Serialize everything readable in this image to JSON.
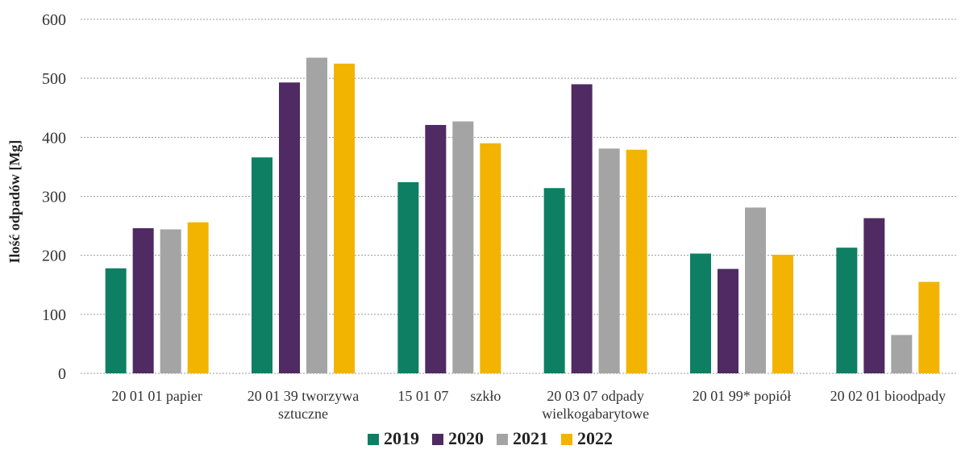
{
  "chart_data": {
    "type": "bar",
    "title": "",
    "xlabel": "",
    "ylabel": "Ilość odpadów [Mg]",
    "ylim": [
      0,
      600
    ],
    "yticks": [
      0,
      100,
      200,
      300,
      400,
      500,
      600
    ],
    "grid": true,
    "legend_position": "bottom",
    "categories": [
      [
        "20 01 01 papier"
      ],
      [
        "20 01 39 tworzywa",
        "sztuczne"
      ],
      [
        "15 01 07      szkło"
      ],
      [
        "20 03 07 odpady",
        "wielkogabarytowe"
      ],
      [
        "20 01 99* popiół"
      ],
      [
        "20 02 01 bioodpady"
      ]
    ],
    "series": [
      {
        "name": "2019",
        "color": "#0e7f62",
        "values": [
          178,
          366,
          324,
          314,
          203,
          213
        ]
      },
      {
        "name": "2020",
        "color": "#4f2a63",
        "values": [
          246,
          493,
          421,
          490,
          177,
          263
        ]
      },
      {
        "name": "2021",
        "color": "#a4a4a4",
        "values": [
          244,
          535,
          427,
          381,
          281,
          65
        ]
      },
      {
        "name": "2022",
        "color": "#f2b400",
        "values": [
          256,
          525,
          390,
          379,
          201,
          155
        ]
      }
    ]
  }
}
